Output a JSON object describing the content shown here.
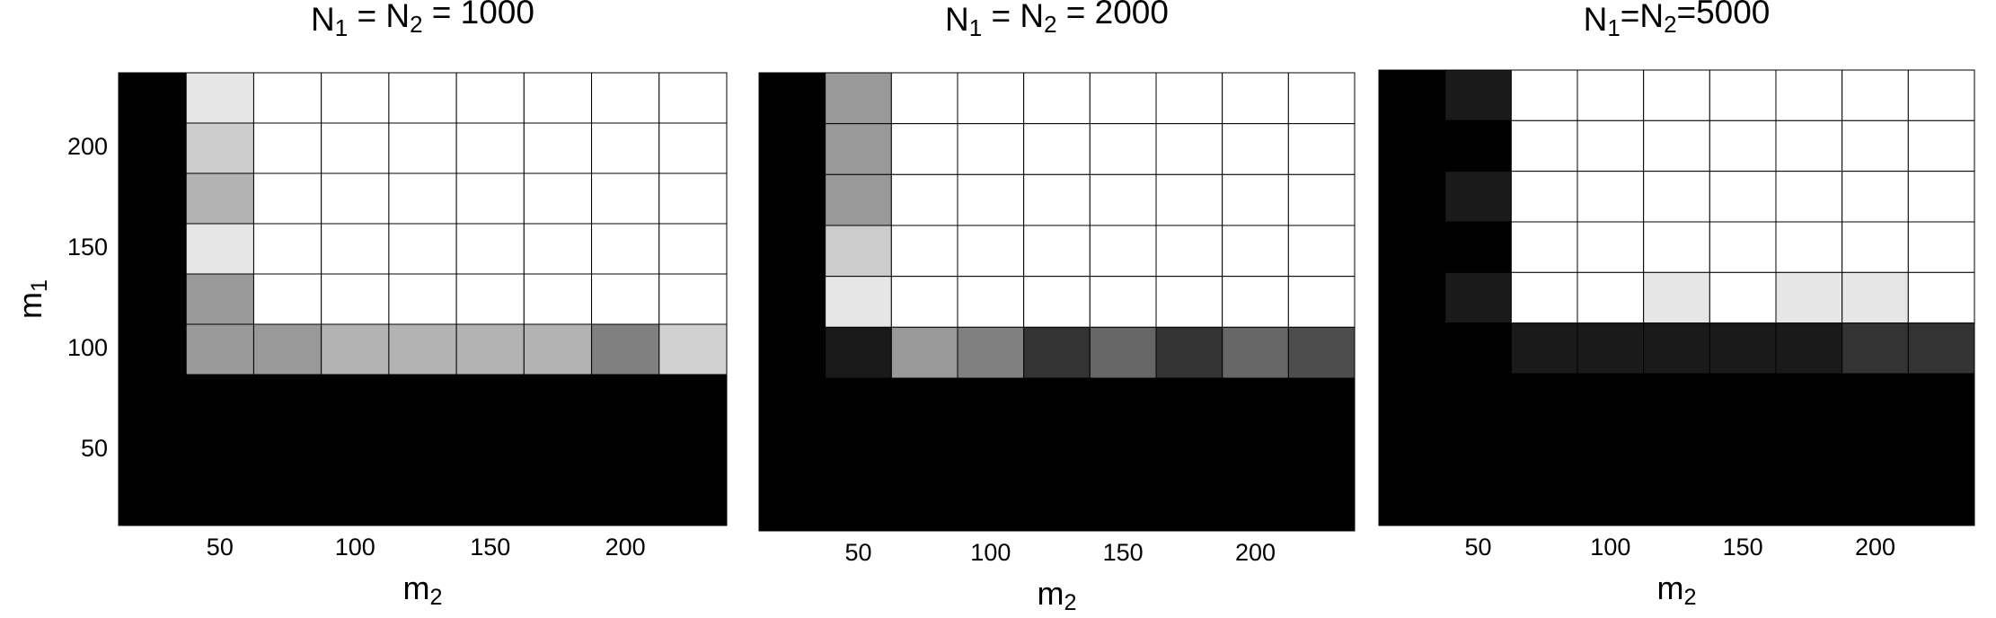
{
  "chart_data": [
    {
      "type": "heatmap",
      "title": "N1 = N2 = 1000",
      "xlabel": "m2",
      "ylabel": "m1",
      "x": [
        25,
        50,
        75,
        100,
        125,
        150,
        175,
        200,
        225
      ],
      "y": [
        225,
        200,
        175,
        150,
        125,
        100,
        75,
        50,
        25
      ],
      "values": [
        [
          0,
          0.9,
          1,
          1,
          1,
          1,
          1,
          1,
          1
        ],
        [
          0,
          0.8,
          1,
          1,
          1,
          1,
          1,
          1,
          1
        ],
        [
          0,
          0.7,
          1,
          1,
          1,
          1,
          1,
          1,
          1
        ],
        [
          0,
          0.9,
          1,
          1,
          1,
          1,
          1,
          1,
          1
        ],
        [
          0,
          0.6,
          1,
          1,
          1,
          1,
          1,
          1,
          1
        ],
        [
          0,
          0.6,
          0.6,
          0.7,
          0.7,
          0.7,
          0.7,
          0.5,
          0.82
        ],
        [
          0,
          0,
          0,
          0,
          0,
          0,
          0,
          0,
          0
        ],
        [
          0,
          0,
          0,
          0,
          0,
          0,
          0,
          0,
          0
        ],
        [
          0,
          0,
          0,
          0,
          0,
          0,
          0,
          0,
          0
        ]
      ],
      "xlim": [
        12.5,
        237.5
      ],
      "ylim": [
        12.5,
        237.5
      ],
      "xticks": [
        50,
        100,
        150,
        200
      ],
      "yticks": [
        50,
        100,
        150,
        200
      ]
    },
    {
      "type": "heatmap",
      "title": "N1 = N2 = 2000",
      "xlabel": "m2",
      "x": [
        25,
        50,
        75,
        100,
        125,
        150,
        175,
        200,
        225
      ],
      "y": [
        225,
        200,
        175,
        150,
        125,
        100,
        75,
        50,
        25
      ],
      "values": [
        [
          0,
          0.6,
          1,
          1,
          1,
          1,
          1,
          1,
          1
        ],
        [
          0,
          0.6,
          1,
          1,
          1,
          1,
          1,
          1,
          1
        ],
        [
          0,
          0.6,
          1,
          1,
          1,
          1,
          1,
          1,
          1
        ],
        [
          0,
          0.8,
          1,
          1,
          1,
          1,
          1,
          1,
          1
        ],
        [
          0,
          0.9,
          1,
          1,
          1,
          1,
          1,
          1,
          1
        ],
        [
          0,
          0.1,
          0.6,
          0.5,
          0.2,
          0.4,
          0.2,
          0.4,
          0.3
        ],
        [
          0,
          0,
          0,
          0,
          0,
          0,
          0,
          0,
          0
        ],
        [
          0,
          0,
          0,
          0,
          0,
          0,
          0,
          0,
          0
        ],
        [
          0,
          0,
          0,
          0,
          0,
          0,
          0,
          0,
          0
        ]
      ],
      "xlim": [
        12.5,
        237.5
      ],
      "ylim": [
        12.5,
        237.5
      ],
      "xticks": [
        50,
        100,
        150,
        200
      ]
    },
    {
      "type": "heatmap",
      "title": "N1=N2=5000",
      "xlabel": "m2",
      "x": [
        25,
        50,
        75,
        100,
        125,
        150,
        175,
        200,
        225
      ],
      "y": [
        225,
        200,
        175,
        150,
        125,
        100,
        75,
        50,
        25
      ],
      "values": [
        [
          0,
          0.1,
          1,
          1,
          1,
          1,
          1,
          1,
          1
        ],
        [
          0,
          0,
          1,
          1,
          1,
          1,
          1,
          1,
          1
        ],
        [
          0,
          0.1,
          1,
          1,
          1,
          1,
          1,
          1,
          1
        ],
        [
          0,
          0,
          1,
          1,
          1,
          1,
          1,
          1,
          1
        ],
        [
          0,
          0.1,
          1,
          1,
          0.9,
          1,
          0.9,
          0.9,
          1
        ],
        [
          0,
          0,
          0.1,
          0.1,
          0.1,
          0.1,
          0.1,
          0.2,
          0.2
        ],
        [
          0,
          0,
          0,
          0,
          0,
          0,
          0,
          0,
          0
        ],
        [
          0,
          0,
          0,
          0,
          0,
          0,
          0,
          0,
          0
        ],
        [
          0,
          0,
          0,
          0,
          0,
          0,
          0,
          0,
          0
        ]
      ],
      "xlim": [
        12.5,
        237.5
      ],
      "ylim": [
        12.5,
        237.5
      ],
      "xticks": [
        50,
        100,
        150,
        200
      ]
    }
  ]
}
